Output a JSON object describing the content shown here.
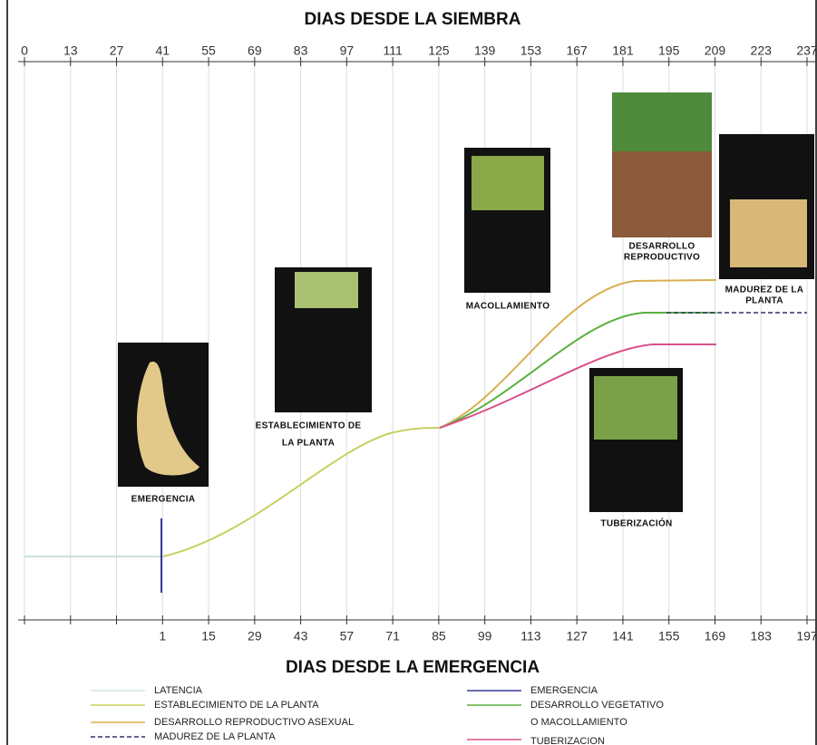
{
  "top_axis": {
    "title": "DIAS DESDE LA SIEMBRA",
    "ticks": [
      "0",
      "13",
      "27",
      "41",
      "55",
      "69",
      "83",
      "97",
      "111",
      "125",
      "139",
      "153",
      "167",
      "181",
      "195",
      "209",
      "223",
      "237"
    ]
  },
  "bottom_axis": {
    "title": "DIAS DESDE LA EMERGENCIA",
    "ticks": [
      "1",
      "15",
      "29",
      "43",
      "57",
      "71",
      "85",
      "99",
      "113",
      "127",
      "141",
      "155",
      "169",
      "183",
      "197"
    ]
  },
  "stages": {
    "emergencia": "EMERGENCIA",
    "establecimiento": [
      "ESTABLECIMIENTO DE",
      "LA PLANTA"
    ],
    "macollamiento": "MACOLLAMIENTO",
    "reproductivo": [
      "DESARROLLO",
      "REPRODUCTIVO"
    ],
    "madurez": [
      "MADUREZ DE LA",
      "PLANTA"
    ],
    "tuberizacion": "TUBERIZACIÓN"
  },
  "legend": {
    "left": [
      "LATENCIA",
      "ESTABLECIMIENTO DE LA PLANTA",
      "DESARROLLO REPRODUCTIVO ASEXUAL",
      "MADUREZ DE LA PLANTA"
    ],
    "right": [
      "EMERGENCIA",
      "DESARROLLO VEGETATIVO",
      "O MACOLLAMIENTO",
      "TUBERIZACION"
    ]
  }
}
